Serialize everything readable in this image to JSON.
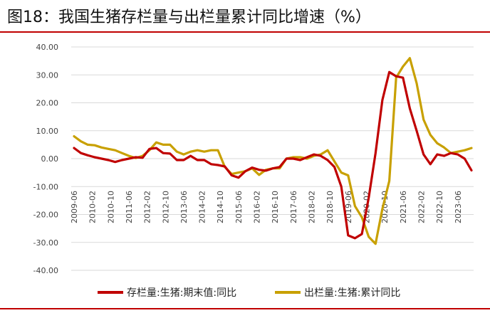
{
  "title": "图18：我国生猪存栏量与出栏量累计同比增速（%）",
  "colors": {
    "rule": "#c00000",
    "series1": "#c00000",
    "series2": "#c8a000"
  },
  "chart_data": {
    "type": "line",
    "ylim": [
      -40,
      40
    ],
    "yticks": [
      "40.00",
      "30.00",
      "20.00",
      "10.00",
      "0.00",
      "-10.00",
      "-20.00",
      "-30.00",
      "-40.00"
    ],
    "yticks_values": [
      40,
      30,
      20,
      10,
      0,
      -10,
      -20,
      -30,
      -40
    ],
    "xticks": [
      "2009-06",
      "2010-02",
      "2010-10",
      "2011-06",
      "2012-02",
      "2012-10",
      "2013-06",
      "2014-02",
      "2014-10",
      "2015-06",
      "2016-02",
      "2016-10",
      "2017-06",
      "2018-02",
      "2018-10",
      "2019-06",
      "2020-02",
      "2020-10",
      "2021-06",
      "2022-02",
      "2022-10",
      "2023-06"
    ],
    "legend_position": "bottom",
    "series": [
      {
        "name": "存栏量:生猪:期末值:同比",
        "points": [
          [
            "2009-06",
            3.8
          ],
          [
            "2009-09",
            2.0
          ],
          [
            "2009-12",
            1.2
          ],
          [
            "2010-03",
            0.5
          ],
          [
            "2010-06",
            0.0
          ],
          [
            "2010-09",
            -0.5
          ],
          [
            "2010-12",
            -1.2
          ],
          [
            "2011-03",
            -0.5
          ],
          [
            "2011-06",
            0.0
          ],
          [
            "2011-09",
            0.5
          ],
          [
            "2011-12",
            0.3
          ],
          [
            "2012-03",
            3.5
          ],
          [
            "2012-06",
            3.8
          ],
          [
            "2012-09",
            2.0
          ],
          [
            "2012-12",
            1.8
          ],
          [
            "2013-03",
            -0.5
          ],
          [
            "2013-06",
            -0.5
          ],
          [
            "2013-09",
            1.0
          ],
          [
            "2013-12",
            -0.5
          ],
          [
            "2014-03",
            -0.5
          ],
          [
            "2014-06",
            -2.0
          ],
          [
            "2014-09",
            -2.3
          ],
          [
            "2014-12",
            -2.8
          ],
          [
            "2015-03",
            -6.0
          ],
          [
            "2015-06",
            -6.8
          ],
          [
            "2015-09",
            -4.5
          ],
          [
            "2015-12",
            -3.2
          ],
          [
            "2016-03",
            -4.0
          ],
          [
            "2016-06",
            -4.3
          ],
          [
            "2016-09",
            -3.5
          ],
          [
            "2016-12",
            -3.0
          ],
          [
            "2017-03",
            0.0
          ],
          [
            "2017-06",
            0.0
          ],
          [
            "2017-09",
            -0.5
          ],
          [
            "2017-12",
            0.5
          ],
          [
            "2018-03",
            1.5
          ],
          [
            "2018-06",
            1.0
          ],
          [
            "2018-09",
            -0.5
          ],
          [
            "2018-12",
            -3.0
          ],
          [
            "2019-03",
            -10.0
          ],
          [
            "2019-06",
            -27.5
          ],
          [
            "2019-09",
            -28.5
          ],
          [
            "2019-12",
            -27.0
          ],
          [
            "2020-03",
            -14.0
          ],
          [
            "2020-06",
            2.0
          ],
          [
            "2020-09",
            21.0
          ],
          [
            "2020-12",
            31.0
          ],
          [
            "2021-03",
            29.5
          ],
          [
            "2021-06",
            29.0
          ],
          [
            "2021-09",
            18.0
          ],
          [
            "2021-12",
            10.0
          ],
          [
            "2022-03",
            1.5
          ],
          [
            "2022-06",
            -2.0
          ],
          [
            "2022-09",
            1.5
          ],
          [
            "2022-12",
            1.0
          ],
          [
            "2023-03",
            2.0
          ],
          [
            "2023-06",
            1.5
          ],
          [
            "2023-09",
            0.0
          ],
          [
            "2023-12",
            -4.2
          ]
        ]
      },
      {
        "name": "出栏量:生猪:累计同比",
        "points": [
          [
            "2009-06",
            8.0
          ],
          [
            "2009-09",
            6.2
          ],
          [
            "2009-12",
            5.0
          ],
          [
            "2010-03",
            4.8
          ],
          [
            "2010-06",
            4.0
          ],
          [
            "2010-09",
            3.5
          ],
          [
            "2010-12",
            3.0
          ],
          [
            "2011-03",
            2.0
          ],
          [
            "2011-06",
            1.0
          ],
          [
            "2011-09",
            0.2
          ],
          [
            "2011-12",
            1.0
          ],
          [
            "2012-03",
            3.0
          ],
          [
            "2012-06",
            5.8
          ],
          [
            "2012-09",
            5.0
          ],
          [
            "2012-12",
            5.0
          ],
          [
            "2013-03",
            2.5
          ],
          [
            "2013-06",
            1.5
          ],
          [
            "2013-09",
            2.5
          ],
          [
            "2013-12",
            3.0
          ],
          [
            "2014-03",
            2.5
          ],
          [
            "2014-06",
            3.0
          ],
          [
            "2014-09",
            3.0
          ],
          [
            "2014-12",
            -3.0
          ],
          [
            "2015-03",
            -5.5
          ],
          [
            "2015-06",
            -5.0
          ],
          [
            "2015-09",
            -4.5
          ],
          [
            "2015-12",
            -3.5
          ],
          [
            "2016-03",
            -5.8
          ],
          [
            "2016-06",
            -4.0
          ],
          [
            "2016-09",
            -3.5
          ],
          [
            "2016-12",
            -3.5
          ],
          [
            "2017-03",
            0.0
          ],
          [
            "2017-06",
            0.5
          ],
          [
            "2017-09",
            0.5
          ],
          [
            "2017-12",
            0.0
          ],
          [
            "2018-03",
            1.0
          ],
          [
            "2018-06",
            1.5
          ],
          [
            "2018-09",
            3.0
          ],
          [
            "2018-12",
            -1.0
          ],
          [
            "2019-03",
            -5.0
          ],
          [
            "2019-06",
            -6.0
          ],
          [
            "2019-09",
            -17.0
          ],
          [
            "2019-12",
            -21.0
          ],
          [
            "2020-03",
            -28.0
          ],
          [
            "2020-06",
            -30.5
          ],
          [
            "2020-09",
            -18.0
          ],
          [
            "2020-12",
            -8.0
          ],
          [
            "2021-03",
            29.0
          ],
          [
            "2021-06",
            33.0
          ],
          [
            "2021-09",
            36.0
          ],
          [
            "2021-12",
            27.0
          ],
          [
            "2022-03",
            14.0
          ],
          [
            "2022-06",
            8.5
          ],
          [
            "2022-09",
            5.5
          ],
          [
            "2022-12",
            4.0
          ],
          [
            "2023-03",
            2.0
          ],
          [
            "2023-06",
            2.5
          ],
          [
            "2023-09",
            3.0
          ],
          [
            "2023-12",
            3.8
          ]
        ]
      }
    ]
  }
}
